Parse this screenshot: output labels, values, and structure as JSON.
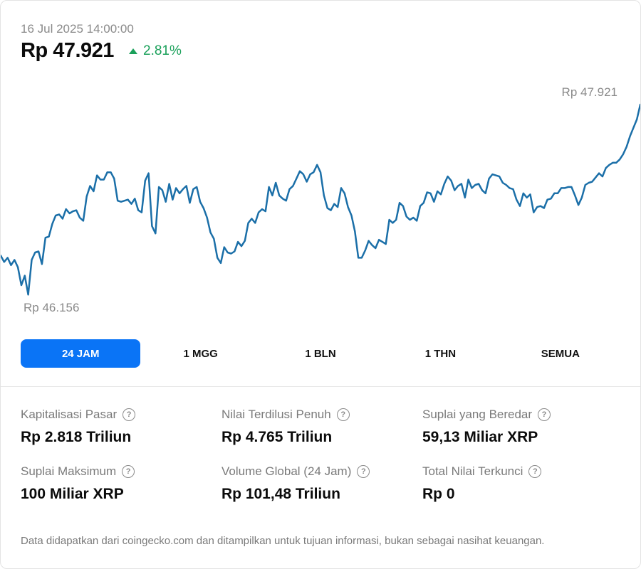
{
  "header": {
    "timestamp": "16 Jul 2025 14:00:00",
    "price": "Rp 47.921",
    "change": "2.81%",
    "change_color": "#1aa05a"
  },
  "chart_data": {
    "type": "line",
    "title": "",
    "xlabel": "",
    "ylabel": "",
    "max_label": "Rp 47.921",
    "min_label": "Rp 46.156",
    "ylim": [
      46156,
      47921
    ],
    "line_color": "#1b6fa8",
    "series": [
      {
        "values": [
          46490,
          46430,
          46470,
          46400,
          46450,
          46380,
          46210,
          46300,
          46120,
          46450,
          46520,
          46530,
          46410,
          46660,
          46670,
          46790,
          46870,
          46880,
          46840,
          46930,
          46890,
          46910,
          46920,
          46850,
          46820,
          47050,
          47150,
          47100,
          47250,
          47210,
          47210,
          47280,
          47280,
          47220,
          47010,
          47000,
          47010,
          47020,
          46980,
          47030,
          46920,
          46900,
          47200,
          47270,
          46770,
          46700,
          47140,
          47110,
          47000,
          47170,
          47020,
          47130,
          47080,
          47120,
          47150,
          46990,
          47120,
          47140,
          47000,
          46940,
          46850,
          46710,
          46650,
          46470,
          46420,
          46570,
          46520,
          46510,
          46530,
          46620,
          46580,
          46630,
          46800,
          46840,
          46800,
          46900,
          46930,
          46910,
          47140,
          47060,
          47180,
          47060,
          47030,
          47010,
          47120,
          47150,
          47220,
          47290,
          47260,
          47190,
          47260,
          47280,
          47350,
          47280,
          47060,
          46940,
          46920,
          46980,
          46950,
          47130,
          47080,
          46950,
          46870,
          46720,
          46470,
          46470,
          46540,
          46630,
          46590,
          46560,
          46640,
          46620,
          46600,
          46830,
          46800,
          46830,
          46990,
          46960,
          46860,
          46830,
          46850,
          46820,
          46960,
          46990,
          47090,
          47080,
          47000,
          47100,
          47070,
          47170,
          47240,
          47200,
          47110,
          47150,
          47170,
          47040,
          47210,
          47130,
          47160,
          47170,
          47110,
          47080,
          47220,
          47260,
          47250,
          47240,
          47180,
          47160,
          47130,
          47120,
          47020,
          46960,
          47080,
          47040,
          47070,
          46900,
          46950,
          46960,
          46940,
          47020,
          47030,
          47080,
          47080,
          47130,
          47130,
          47140,
          47140,
          47060,
          46970,
          47040,
          47160,
          47180,
          47190,
          47230,
          47270,
          47240,
          47320,
          47350,
          47370,
          47370,
          47400,
          47450,
          47520,
          47620,
          47700,
          47780,
          47921
        ]
      }
    ],
    "grid": false,
    "legend": "none"
  },
  "ranges": {
    "tabs": [
      "24 JAM",
      "1 MGG",
      "1 BLN",
      "1 THN",
      "SEMUA"
    ],
    "active": "24 JAM",
    "accent": "#0a74f6"
  },
  "stats": [
    {
      "label": "Kapitalisasi Pasar",
      "value": "Rp 2.818 Triliun"
    },
    {
      "label": "Nilai Terdilusi Penuh",
      "value": "Rp 4.765 Triliun"
    },
    {
      "label": "Suplai yang Beredar",
      "value": "59,13 Miliar XRP"
    },
    {
      "label": "Suplai Maksimum",
      "value": "100 Miliar XRP"
    },
    {
      "label": "Volume Global (24 Jam)",
      "value": "Rp 101,48 Triliun"
    },
    {
      "label": "Total Nilai Terkunci",
      "value": "Rp 0"
    }
  ],
  "info_icon": "info-circle-icon",
  "footnote": "Data didapatkan dari coingecko.com dan ditampilkan untuk tujuan informasi, bukan sebagai nasihat keuangan."
}
